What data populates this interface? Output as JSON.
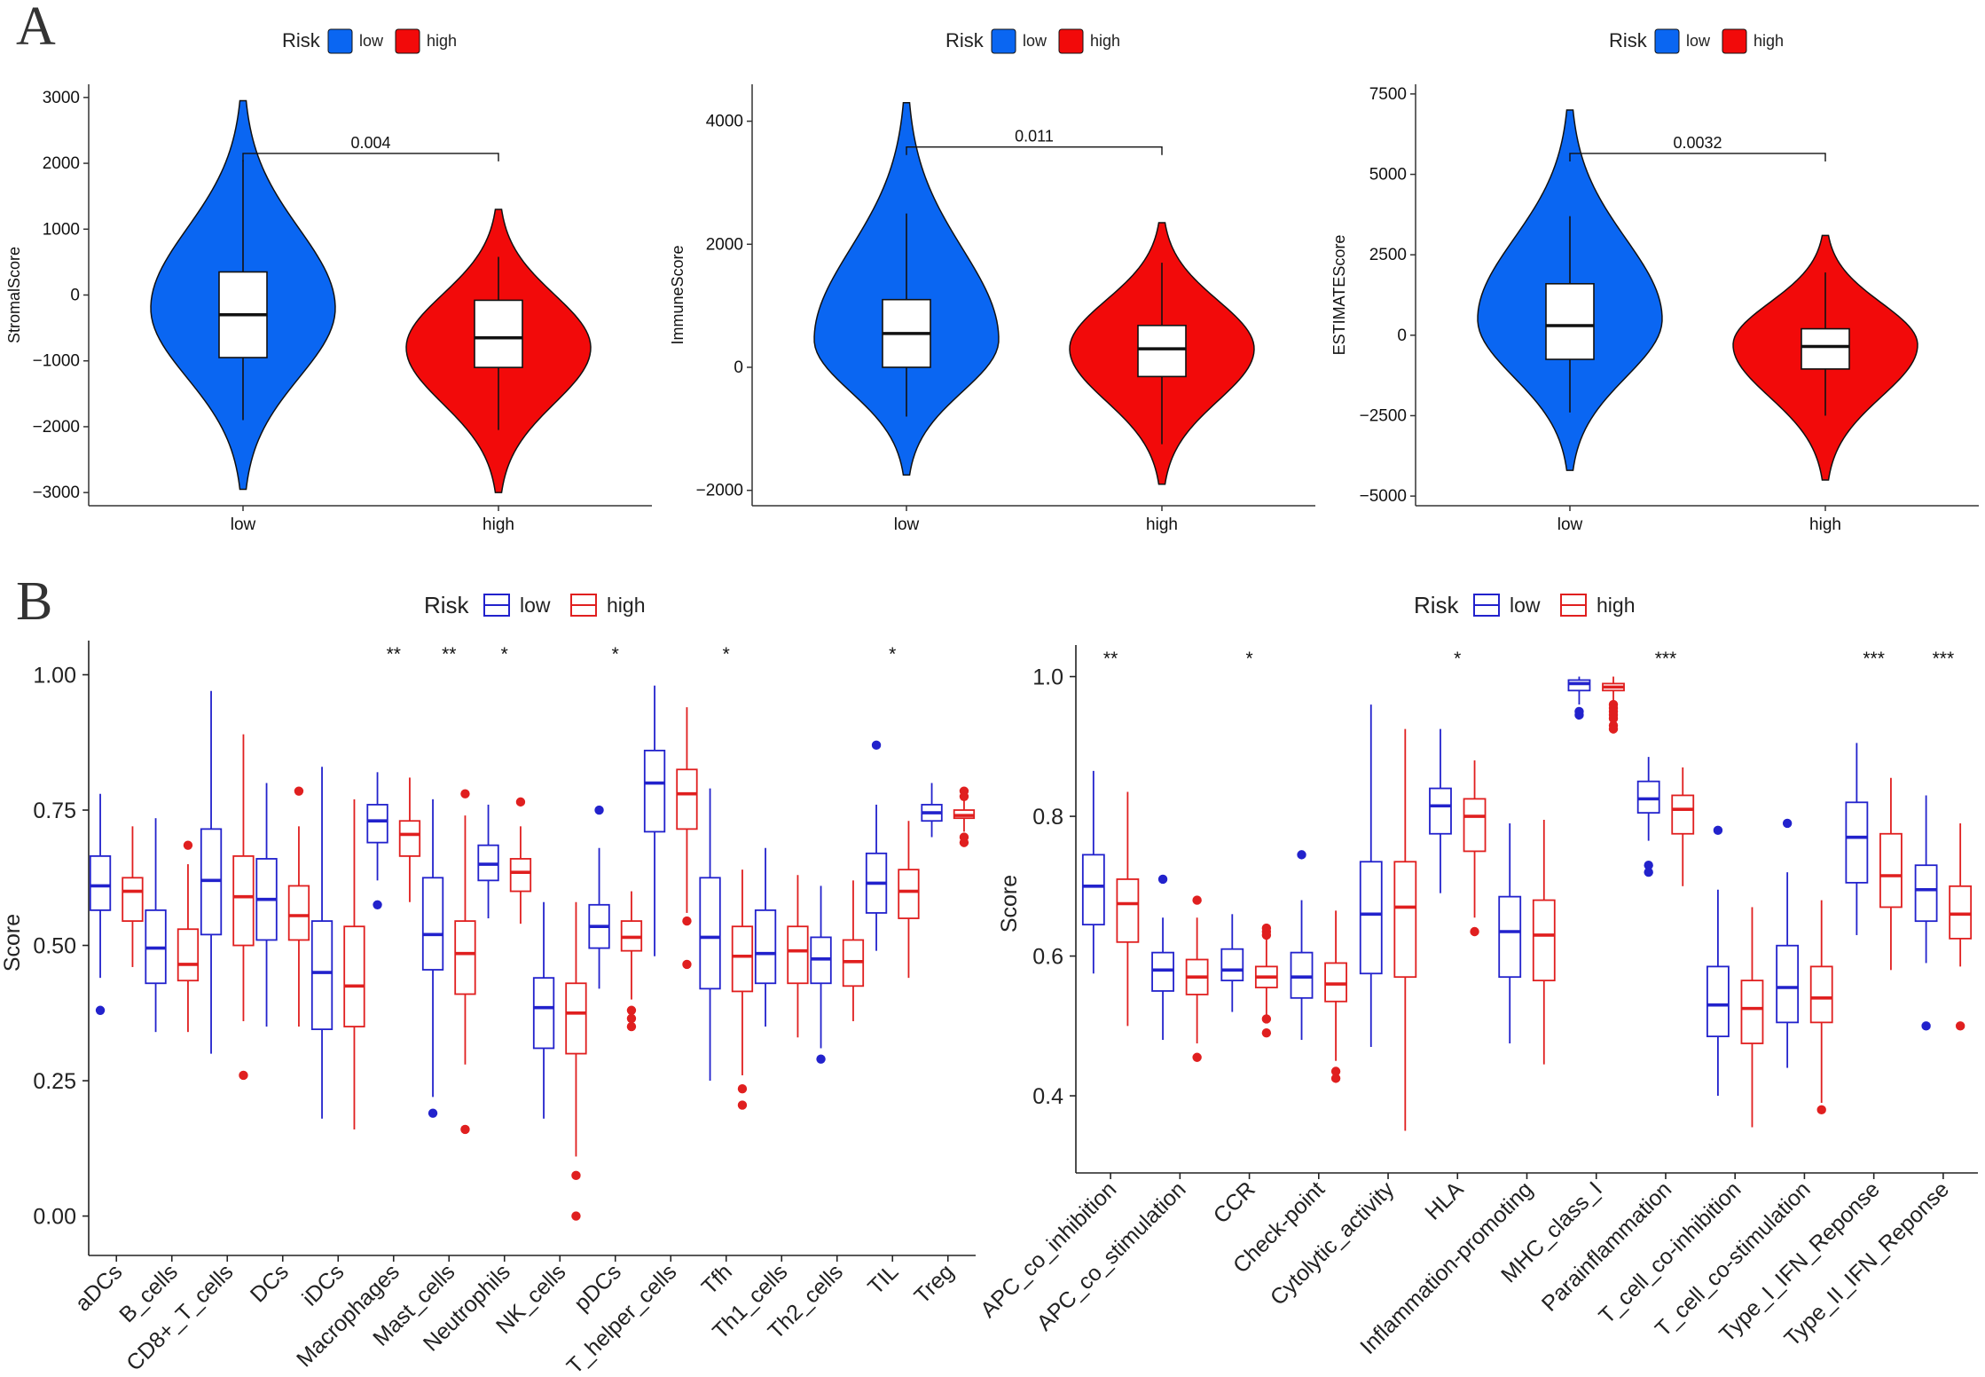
{
  "panels": {
    "a": "A",
    "b": "B"
  },
  "colors": {
    "low": "#0A66F2",
    "high": "#F20A0A",
    "box_low": "#2222CC",
    "box_high": "#E01F1F"
  },
  "chart_data": [
    {
      "type": "violin",
      "panel": "A",
      "legend": {
        "title": "Risk",
        "entries": [
          "low",
          "high"
        ]
      },
      "ylabel": "StromalScore",
      "categories": [
        "low",
        "high"
      ],
      "ylim": [
        -3200,
        3200
      ],
      "yticks": [
        -3000,
        -2000,
        -1000,
        0,
        1000,
        2000,
        3000
      ],
      "yticklabels": [
        "−3000",
        "−2000",
        "−1000",
        "0",
        "1000",
        "2000",
        "3000"
      ],
      "series": [
        {
          "name": "low",
          "min": -2950,
          "max": 2950,
          "median": -300,
          "q1": -950,
          "q3": 350,
          "whisker_low": -1900,
          "whisker_high": 2050,
          "mode": -200
        },
        {
          "name": "high",
          "min": -3000,
          "max": 1300,
          "median": -650,
          "q1": -1100,
          "q3": -80,
          "whisker_low": -2050,
          "whisker_high": 580,
          "mode": -800
        }
      ],
      "annotation": {
        "text": "0.004",
        "y": 2150
      }
    },
    {
      "type": "violin",
      "panel": "A",
      "legend": {
        "title": "Risk",
        "entries": [
          "low",
          "high"
        ]
      },
      "ylabel": "ImmuneScore",
      "categories": [
        "low",
        "high"
      ],
      "ylim": [
        -2250,
        4600
      ],
      "yticks": [
        -2000,
        0,
        2000,
        4000
      ],
      "yticklabels": [
        "−2000",
        "0",
        "2000",
        "4000"
      ],
      "series": [
        {
          "name": "low",
          "min": -1750,
          "max": 4300,
          "median": 550,
          "q1": 0,
          "q3": 1100,
          "whisker_low": -800,
          "whisker_high": 2500,
          "mode": 450
        },
        {
          "name": "high",
          "min": -1900,
          "max": 2350,
          "median": 300,
          "q1": -150,
          "q3": 680,
          "whisker_low": -1250,
          "whisker_high": 1700,
          "mode": 300
        }
      ],
      "annotation": {
        "text": "0.011",
        "y": 3580
      }
    },
    {
      "type": "violin",
      "panel": "A",
      "legend": {
        "title": "Risk",
        "entries": [
          "low",
          "high"
        ]
      },
      "ylabel": "ESTIMATEScore",
      "categories": [
        "low",
        "high"
      ],
      "ylim": [
        -5300,
        7800
      ],
      "yticks": [
        -5000,
        -2500,
        0,
        2500,
        5000,
        7500
      ],
      "yticklabels": [
        "−5000",
        "−2500",
        "0",
        "2500",
        "5000",
        "7500"
      ],
      "series": [
        {
          "name": "low",
          "min": -4200,
          "max": 7000,
          "median": 300,
          "q1": -750,
          "q3": 1600,
          "whisker_low": -2400,
          "whisker_high": 3700,
          "mode": 500
        },
        {
          "name": "high",
          "min": -4500,
          "max": 3100,
          "median": -350,
          "q1": -1050,
          "q3": 200,
          "whisker_low": -2500,
          "whisker_high": 1950,
          "mode": -300
        }
      ],
      "annotation": {
        "text": "0.0032",
        "y": 5650
      }
    },
    {
      "type": "boxplot",
      "panel": "B",
      "legend": {
        "title": "Risk",
        "entries": [
          "low",
          "high"
        ]
      },
      "ylabel": "Score",
      "ylim": [
        -0.04,
        1.05
      ],
      "yticks": [
        0,
        0.25,
        0.5,
        0.75,
        1.0
      ],
      "yticklabels": [
        "0.00",
        "0.25",
        "0.50",
        "0.75",
        "1.00"
      ],
      "categories": [
        "aDCs",
        "B_cells",
        "CD8+_T_cells",
        "DCs",
        "iDCs",
        "Macrophages",
        "Mast_cells",
        "Neutrophils",
        "NK_cells",
        "pDCs",
        "T_helper_cells",
        "Tfh",
        "Th1_cells",
        "Th2_cells",
        "TIL",
        "Treg"
      ],
      "significance": [
        "",
        "",
        "",
        "",
        "",
        "**",
        "**",
        "*",
        "",
        "*",
        "",
        "*",
        "",
        "",
        "*",
        ""
      ],
      "series": [
        {
          "name": "low",
          "boxes": [
            [
              0.44,
              0.565,
              0.61,
              0.665,
              0.78,
              [
                0.38
              ]
            ],
            [
              0.34,
              0.43,
              0.495,
              0.565,
              0.735,
              []
            ],
            [
              0.3,
              0.52,
              0.62,
              0.715,
              0.97,
              []
            ],
            [
              0.35,
              0.51,
              0.585,
              0.66,
              0.8,
              []
            ],
            [
              0.18,
              0.345,
              0.45,
              0.545,
              0.83,
              []
            ],
            [
              0.62,
              0.69,
              0.73,
              0.76,
              0.82,
              [
                0.575
              ]
            ],
            [
              0.22,
              0.455,
              0.52,
              0.625,
              0.77,
              [
                0.19
              ]
            ],
            [
              0.55,
              0.62,
              0.65,
              0.685,
              0.76,
              []
            ],
            [
              0.18,
              0.31,
              0.385,
              0.44,
              0.58,
              []
            ],
            [
              0.42,
              0.495,
              0.535,
              0.575,
              0.68,
              [
                0.75
              ]
            ],
            [
              0.48,
              0.71,
              0.8,
              0.86,
              0.98,
              []
            ],
            [
              0.25,
              0.42,
              0.515,
              0.625,
              0.79,
              []
            ],
            [
              0.35,
              0.43,
              0.485,
              0.565,
              0.68,
              []
            ],
            [
              0.31,
              0.43,
              0.475,
              0.515,
              0.61,
              [
                0.29
              ]
            ],
            [
              0.49,
              0.56,
              0.615,
              0.67,
              0.76,
              [
                0.87
              ]
            ],
            [
              0.7,
              0.73,
              0.745,
              0.76,
              0.8,
              []
            ]
          ]
        },
        {
          "name": "high",
          "boxes": [
            [
              0.46,
              0.545,
              0.6,
              0.625,
              0.72,
              []
            ],
            [
              0.34,
              0.435,
              0.465,
              0.53,
              0.65,
              [
                0.685
              ]
            ],
            [
              0.36,
              0.5,
              0.59,
              0.665,
              0.89,
              [
                0.26
              ]
            ],
            [
              0.35,
              0.51,
              0.555,
              0.61,
              0.72,
              [
                0.785
              ]
            ],
            [
              0.16,
              0.35,
              0.425,
              0.535,
              0.77,
              []
            ],
            [
              0.58,
              0.665,
              0.705,
              0.73,
              0.81,
              []
            ],
            [
              0.28,
              0.41,
              0.485,
              0.545,
              0.74,
              [
                0.78,
                0.16
              ]
            ],
            [
              0.54,
              0.6,
              0.635,
              0.66,
              0.72,
              [
                0.765
              ]
            ],
            [
              0.11,
              0.3,
              0.375,
              0.43,
              0.58,
              [
                0.075,
                0.0
              ]
            ],
            [
              0.4,
              0.49,
              0.515,
              0.545,
              0.6,
              [
                0.38,
                0.365,
                0.35
              ]
            ],
            [
              0.56,
              0.715,
              0.78,
              0.825,
              0.94,
              [
                0.545,
                0.465
              ]
            ],
            [
              0.26,
              0.415,
              0.48,
              0.535,
              0.64,
              [
                0.235,
                0.205
              ]
            ],
            [
              0.33,
              0.43,
              0.49,
              0.535,
              0.63,
              []
            ],
            [
              0.36,
              0.425,
              0.47,
              0.51,
              0.62,
              []
            ],
            [
              0.44,
              0.55,
              0.6,
              0.64,
              0.73,
              []
            ],
            [
              0.71,
              0.735,
              0.74,
              0.75,
              0.79,
              [
                0.785,
                0.775,
                0.7,
                0.69
              ]
            ]
          ]
        }
      ]
    },
    {
      "type": "boxplot",
      "panel": "B",
      "legend": {
        "title": "Risk",
        "entries": [
          "low",
          "high"
        ]
      },
      "ylabel": "Score",
      "ylim": [
        0.315,
        1.035
      ],
      "yticks": [
        0.4,
        0.6,
        0.8,
        1.0
      ],
      "yticklabels": [
        "0.4",
        "0.6",
        "0.8",
        "1.0"
      ],
      "categories": [
        "APC_co_inhibition",
        "APC_co_stimulation",
        "CCR",
        "Check-point",
        "Cytolytic_activity",
        "HLA",
        "Inflammation-promoting",
        "MHC_class_I",
        "Parainflammation",
        "T_cell_co-inhibition",
        "T_cell_co-stimulation",
        "Type_I_IFN_Reponse",
        "Type_II_IFN_Reponse"
      ],
      "significance": [
        "**",
        "",
        "*",
        "",
        "",
        "*",
        "",
        "",
        "***",
        "",
        "",
        "***",
        "***"
      ],
      "series": [
        {
          "name": "low",
          "boxes": [
            [
              0.575,
              0.645,
              0.7,
              0.745,
              0.865,
              []
            ],
            [
              0.48,
              0.55,
              0.58,
              0.605,
              0.655,
              [
                0.71
              ]
            ],
            [
              0.52,
              0.565,
              0.58,
              0.61,
              0.66,
              []
            ],
            [
              0.48,
              0.54,
              0.57,
              0.605,
              0.68,
              [
                0.745
              ]
            ],
            [
              0.47,
              0.575,
              0.66,
              0.735,
              0.96,
              []
            ],
            [
              0.69,
              0.775,
              0.815,
              0.84,
              0.925,
              []
            ],
            [
              0.475,
              0.57,
              0.635,
              0.685,
              0.79,
              []
            ],
            [
              0.96,
              0.98,
              0.99,
              0.995,
              1.0,
              [
                0.95,
                0.945
              ]
            ],
            [
              0.765,
              0.805,
              0.825,
              0.85,
              0.885,
              [
                0.73,
                0.72
              ]
            ],
            [
              0.4,
              0.485,
              0.53,
              0.585,
              0.695,
              [
                0.78
              ]
            ],
            [
              0.44,
              0.505,
              0.555,
              0.615,
              0.72,
              [
                0.79
              ]
            ],
            [
              0.63,
              0.705,
              0.77,
              0.82,
              0.905,
              []
            ],
            [
              0.59,
              0.65,
              0.695,
              0.73,
              0.83,
              [
                0.5
              ]
            ]
          ]
        },
        {
          "name": "high",
          "boxes": [
            [
              0.5,
              0.62,
              0.675,
              0.71,
              0.835,
              []
            ],
            [
              0.475,
              0.545,
              0.57,
              0.595,
              0.655,
              [
                0.68,
                0.455
              ]
            ],
            [
              0.515,
              0.555,
              0.57,
              0.585,
              0.63,
              [
                0.64,
                0.635,
                0.63,
                0.51,
                0.49
              ]
            ],
            [
              0.45,
              0.535,
              0.56,
              0.59,
              0.665,
              [
                0.435,
                0.425
              ]
            ],
            [
              0.35,
              0.57,
              0.67,
              0.735,
              0.925,
              []
            ],
            [
              0.655,
              0.75,
              0.8,
              0.825,
              0.88,
              [
                0.635
              ]
            ],
            [
              0.445,
              0.565,
              0.63,
              0.68,
              0.795,
              []
            ],
            [
              0.965,
              0.98,
              0.985,
              0.99,
              1.0,
              [
                0.96,
                0.955,
                0.95,
                0.945,
                0.94,
                0.93,
                0.925
              ]
            ],
            [
              0.7,
              0.775,
              0.81,
              0.83,
              0.87,
              []
            ],
            [
              0.355,
              0.475,
              0.525,
              0.565,
              0.67,
              []
            ],
            [
              0.39,
              0.505,
              0.54,
              0.585,
              0.68,
              [
                0.38
              ]
            ],
            [
              0.58,
              0.67,
              0.715,
              0.775,
              0.855,
              []
            ],
            [
              0.585,
              0.625,
              0.66,
              0.7,
              0.79,
              [
                0.5
              ]
            ]
          ]
        }
      ]
    }
  ]
}
